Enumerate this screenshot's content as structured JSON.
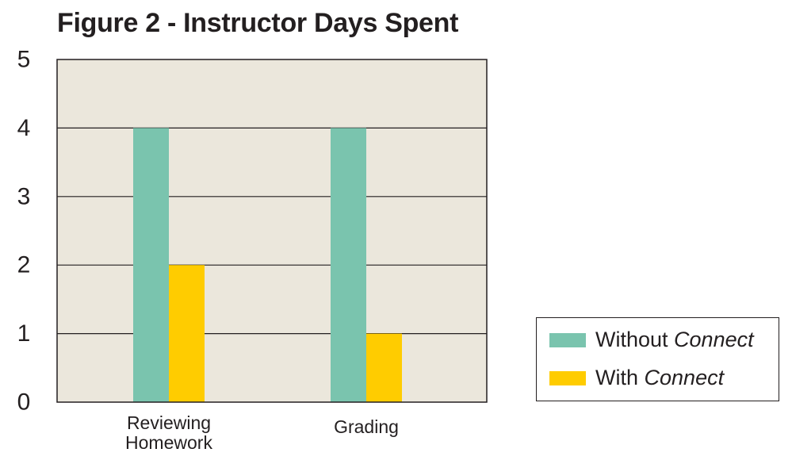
{
  "chart_data": {
    "type": "bar",
    "title": "Figure 2 - Instructor Days Spent",
    "xlabel": "",
    "ylabel": "",
    "categories": [
      [
        "Reviewing",
        "Homework"
      ],
      [
        "Grading"
      ]
    ],
    "series": [
      {
        "name": "Without Connect",
        "name_plain": "Without ",
        "name_italic": "Connect",
        "values": [
          4,
          4
        ],
        "color": "#7ac4ae"
      },
      {
        "name": "With Connect",
        "name_plain": "With ",
        "name_italic": "Connect",
        "values": [
          2,
          1
        ],
        "color": "#ffcc00"
      }
    ],
    "ylim": [
      0,
      5
    ],
    "yticks": [
      0,
      1,
      2,
      3,
      4,
      5
    ],
    "grid": true,
    "legend_position": "bottom-right, outside plot",
    "plot_background": "#ebe7dc"
  }
}
